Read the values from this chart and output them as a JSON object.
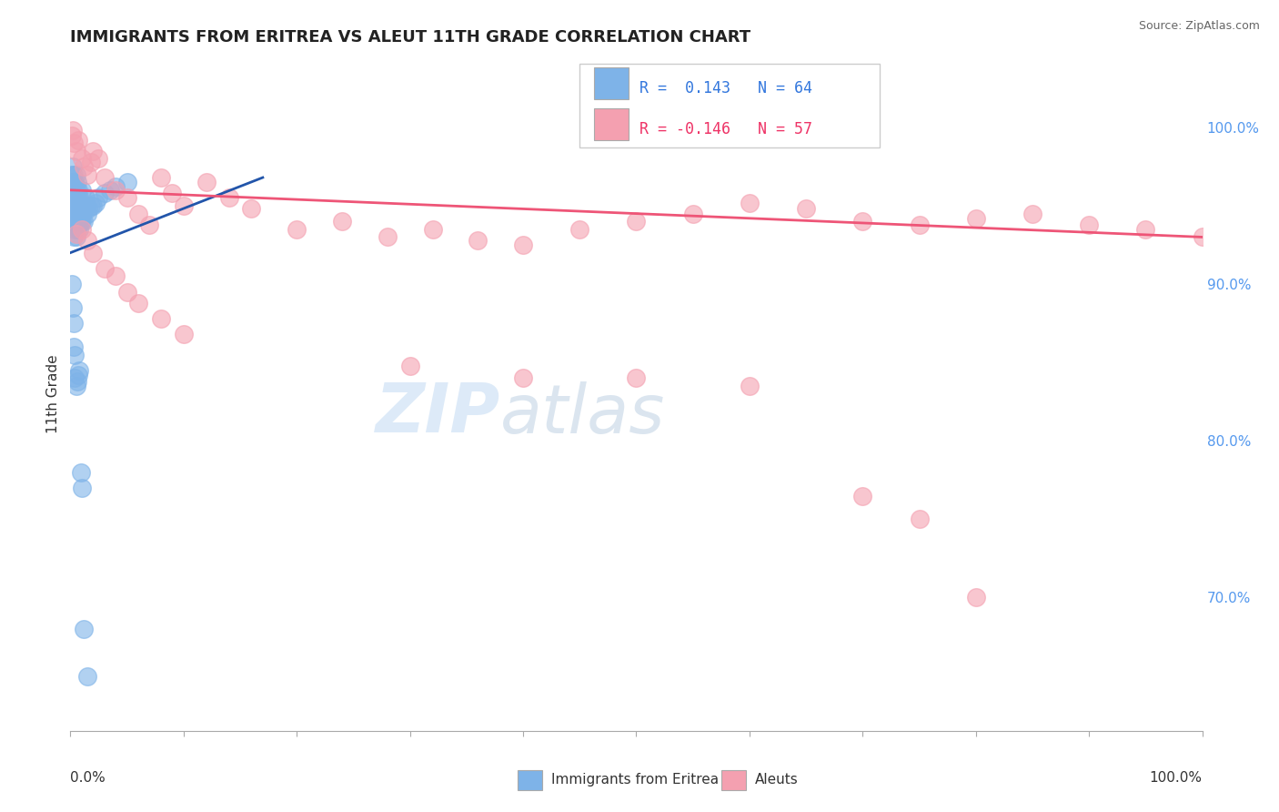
{
  "title": "IMMIGRANTS FROM ERITREA VS ALEUT 11TH GRADE CORRELATION CHART",
  "source": "Source: ZipAtlas.com",
  "ylabel": "11th Grade",
  "legend_blue_label": "R =  0.143   N = 64",
  "legend_pink_label": "R = -0.146   N = 57",
  "blue_color": "#7EB3E8",
  "pink_color": "#F4A0B0",
  "blue_line_color": "#2255AA",
  "pink_line_color": "#EE5577",
  "background_color": "#FFFFFF",
  "right_ytick_labels": [
    "70.0%",
    "80.0%",
    "90.0%",
    "100.0%"
  ],
  "right_ytick_values": [
    0.7,
    0.8,
    0.9,
    1.0
  ],
  "xmin": 0.0,
  "xmax": 1.0,
  "ymin": 0.615,
  "ymax": 1.045,
  "blue_x": [
    0.001,
    0.001,
    0.001,
    0.002,
    0.002,
    0.002,
    0.002,
    0.003,
    0.003,
    0.003,
    0.003,
    0.003,
    0.004,
    0.004,
    0.004,
    0.004,
    0.005,
    0.005,
    0.005,
    0.005,
    0.005,
    0.006,
    0.006,
    0.006,
    0.006,
    0.007,
    0.007,
    0.007,
    0.008,
    0.008,
    0.008,
    0.009,
    0.009,
    0.01,
    0.01,
    0.01,
    0.011,
    0.012,
    0.013,
    0.014,
    0.015,
    0.016,
    0.018,
    0.02,
    0.022,
    0.025,
    0.03,
    0.035,
    0.04,
    0.05,
    0.001,
    0.002,
    0.003,
    0.003,
    0.004,
    0.004,
    0.005,
    0.006,
    0.007,
    0.008,
    0.009,
    0.01,
    0.012,
    0.015
  ],
  "blue_y": [
    0.97,
    0.96,
    0.95,
    0.975,
    0.965,
    0.955,
    0.945,
    0.97,
    0.96,
    0.95,
    0.94,
    0.93,
    0.965,
    0.955,
    0.945,
    0.935,
    0.97,
    0.96,
    0.95,
    0.94,
    0.93,
    0.965,
    0.955,
    0.945,
    0.935,
    0.96,
    0.95,
    0.94,
    0.955,
    0.945,
    0.935,
    0.95,
    0.94,
    0.96,
    0.95,
    0.94,
    0.945,
    0.94,
    0.955,
    0.95,
    0.945,
    0.948,
    0.95,
    0.95,
    0.952,
    0.955,
    0.958,
    0.96,
    0.962,
    0.965,
    0.9,
    0.885,
    0.875,
    0.86,
    0.855,
    0.84,
    0.835,
    0.838,
    0.842,
    0.845,
    0.78,
    0.77,
    0.68,
    0.65
  ],
  "pink_x": [
    0.001,
    0.002,
    0.003,
    0.005,
    0.007,
    0.01,
    0.012,
    0.015,
    0.018,
    0.02,
    0.025,
    0.03,
    0.04,
    0.05,
    0.06,
    0.07,
    0.08,
    0.09,
    0.1,
    0.12,
    0.14,
    0.16,
    0.2,
    0.24,
    0.28,
    0.32,
    0.36,
    0.4,
    0.45,
    0.5,
    0.55,
    0.6,
    0.65,
    0.7,
    0.75,
    0.8,
    0.85,
    0.9,
    0.95,
    1.0,
    0.005,
    0.01,
    0.015,
    0.02,
    0.03,
    0.04,
    0.05,
    0.06,
    0.08,
    0.1,
    0.3,
    0.4,
    0.5,
    0.6,
    0.7,
    0.75,
    0.8
  ],
  "pink_y": [
    0.995,
    0.998,
    0.99,
    0.985,
    0.992,
    0.98,
    0.975,
    0.97,
    0.978,
    0.985,
    0.98,
    0.968,
    0.96,
    0.955,
    0.945,
    0.938,
    0.968,
    0.958,
    0.95,
    0.965,
    0.955,
    0.948,
    0.935,
    0.94,
    0.93,
    0.935,
    0.928,
    0.925,
    0.935,
    0.94,
    0.945,
    0.952,
    0.948,
    0.94,
    0.938,
    0.942,
    0.945,
    0.938,
    0.935,
    0.93,
    0.932,
    0.935,
    0.928,
    0.92,
    0.91,
    0.905,
    0.895,
    0.888,
    0.878,
    0.868,
    0.848,
    0.84,
    0.84,
    0.835,
    0.765,
    0.75,
    0.7
  ],
  "blue_trend_x": [
    0.0,
    0.17
  ],
  "blue_trend_y": [
    0.92,
    0.968
  ],
  "pink_trend_x": [
    0.0,
    1.0
  ],
  "pink_trend_y": [
    0.96,
    0.93
  ]
}
